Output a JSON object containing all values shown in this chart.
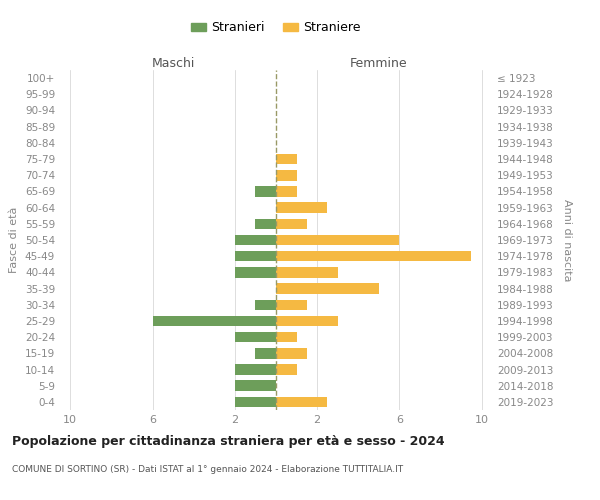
{
  "age_groups": [
    "100+",
    "95-99",
    "90-94",
    "85-89",
    "80-84",
    "75-79",
    "70-74",
    "65-69",
    "60-64",
    "55-59",
    "50-54",
    "45-49",
    "40-44",
    "35-39",
    "30-34",
    "25-29",
    "20-24",
    "15-19",
    "10-14",
    "5-9",
    "0-4"
  ],
  "birth_years": [
    "≤ 1923",
    "1924-1928",
    "1929-1933",
    "1934-1938",
    "1939-1943",
    "1944-1948",
    "1949-1953",
    "1954-1958",
    "1959-1963",
    "1964-1968",
    "1969-1973",
    "1974-1978",
    "1979-1983",
    "1984-1988",
    "1989-1993",
    "1994-1998",
    "1999-2003",
    "2004-2008",
    "2009-2013",
    "2014-2018",
    "2019-2023"
  ],
  "males": [
    0,
    0,
    0,
    0,
    0,
    0,
    0,
    1,
    0,
    1,
    2,
    2,
    2,
    0,
    1,
    6,
    2,
    1,
    2,
    2,
    2
  ],
  "females": [
    0,
    0,
    0,
    0,
    0,
    1,
    1,
    1,
    2.5,
    1.5,
    6,
    9.5,
    3,
    5,
    1.5,
    3,
    1,
    1.5,
    1,
    0,
    2.5
  ],
  "male_color": "#6d9e5a",
  "female_color": "#f5b942",
  "background_color": "#ffffff",
  "grid_color": "#d0d0d0",
  "title": "Popolazione per cittadinanza straniera per età e sesso - 2024",
  "subtitle": "COMUNE DI SORTINO (SR) - Dati ISTAT al 1° gennaio 2024 - Elaborazione TUTTITALIA.IT",
  "ylabel_left": "Fasce di età",
  "ylabel_right": "Anni di nascita",
  "xlabel_left": "Maschi",
  "xlabel_right": "Femmine",
  "legend_stranieri": "Stranieri",
  "legend_straniere": "Straniere",
  "xlim": 10.5
}
